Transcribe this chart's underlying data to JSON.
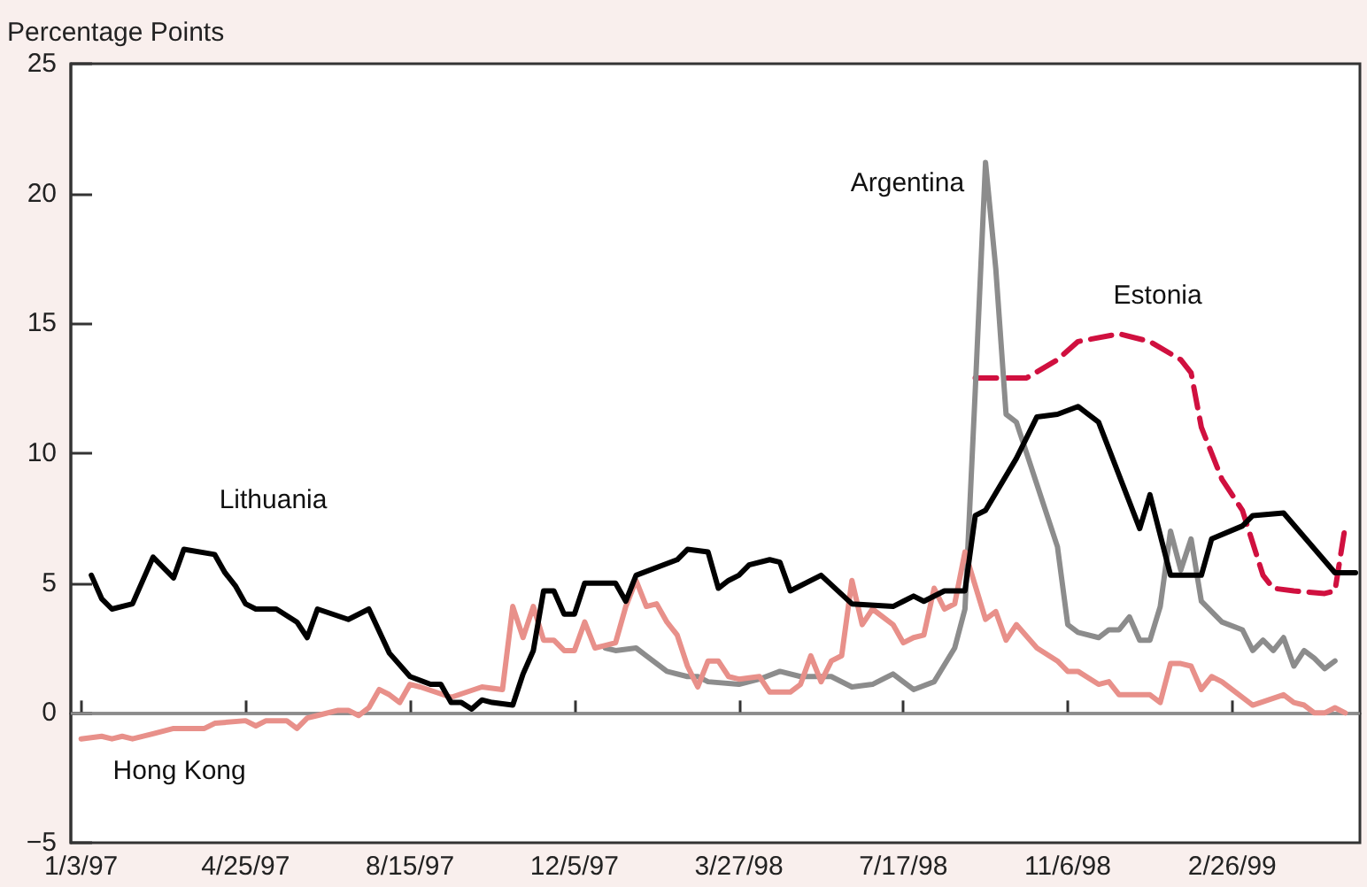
{
  "chart_data": {
    "type": "line",
    "ylabel": "Percentage Points",
    "ylim": [
      -5,
      25
    ],
    "yticks": [
      -5,
      0,
      5,
      10,
      15,
      20,
      25
    ],
    "xlim": [
      "1996-12-27",
      "1999-05-24"
    ],
    "xticks": [
      {
        "value": "1997-01-03",
        "label": "1/3/97"
      },
      {
        "value": "1997-04-25",
        "label": "4/25/97"
      },
      {
        "value": "1997-08-15",
        "label": "8/15/97"
      },
      {
        "value": "1997-12-05",
        "label": "12/5/97"
      },
      {
        "value": "1998-03-27",
        "label": "3/27/98"
      },
      {
        "value": "1998-07-17",
        "label": "7/17/98"
      },
      {
        "value": "1998-11-06",
        "label": "11/6/98"
      },
      {
        "value": "1999-02-26",
        "label": "2/26/99"
      }
    ],
    "grid": false,
    "legend": false,
    "marker": "none",
    "ref_lines": [
      {
        "axis": "y",
        "value": 0,
        "color": "#8c8c8c"
      }
    ],
    "series": [
      {
        "name": "Lithuania",
        "color": "#000000",
        "line_style": "solid",
        "x": [
          "1997-01-10",
          "1997-01-17",
          "1997-01-24",
          "1997-02-07",
          "1997-02-21",
          "1997-03-07",
          "1997-03-14",
          "1997-04-04",
          "1997-04-11",
          "1997-04-18",
          "1997-04-25",
          "1997-05-02",
          "1997-05-16",
          "1997-05-30",
          "1997-06-06",
          "1997-06-13",
          "1997-07-04",
          "1997-07-18",
          "1997-08-01",
          "1997-08-15",
          "1997-08-29",
          "1997-09-05",
          "1997-09-12",
          "1997-09-19",
          "1997-09-26",
          "1997-10-03",
          "1997-10-10",
          "1997-10-24",
          "1997-10-31",
          "1997-11-07",
          "1997-11-14",
          "1997-11-21",
          "1997-11-28",
          "1997-12-05",
          "1997-12-12",
          "1998-01-02",
          "1998-01-09",
          "1998-01-16",
          "1998-02-13",
          "1998-02-20",
          "1998-03-06",
          "1998-03-13",
          "1998-03-20",
          "1998-03-27",
          "1998-04-03",
          "1998-04-17",
          "1998-04-24",
          "1998-05-01",
          "1998-05-22",
          "1998-06-12",
          "1998-07-10",
          "1998-07-17",
          "1998-07-24",
          "1998-07-31",
          "1998-08-14",
          "1998-08-28",
          "1998-09-04",
          "1998-09-11",
          "1998-10-02",
          "1998-10-16",
          "1998-10-30",
          "1998-11-13",
          "1998-11-27",
          "1998-12-25",
          "1999-01-01",
          "1999-01-15",
          "1999-02-05",
          "1999-02-12",
          "1999-03-05",
          "1999-03-12",
          "1999-04-02",
          "1999-05-07",
          "1999-05-21"
        ],
        "values": [
          5.3,
          4.4,
          4.0,
          4.2,
          6.0,
          5.2,
          6.3,
          6.1,
          5.4,
          4.9,
          4.2,
          4.0,
          4.0,
          3.5,
          2.9,
          4.0,
          3.6,
          4.0,
          2.3,
          1.4,
          1.1,
          1.1,
          0.4,
          0.4,
          0.15,
          0.5,
          0.4,
          0.3,
          1.5,
          2.4,
          4.7,
          4.7,
          3.8,
          3.8,
          5.0,
          5.0,
          4.3,
          5.3,
          5.9,
          6.3,
          6.2,
          4.8,
          5.1,
          5.3,
          5.7,
          5.9,
          5.8,
          4.7,
          5.3,
          4.2,
          4.1,
          4.3,
          4.5,
          4.3,
          4.7,
          4.7,
          7.6,
          7.8,
          9.8,
          11.4,
          11.5,
          11.8,
          11.2,
          7.1,
          8.4,
          5.3,
          5.3,
          6.7,
          7.2,
          7.6,
          7.7,
          5.4,
          5.4
        ]
      },
      {
        "name": "Hong Kong",
        "color": "#e8908a",
        "line_style": "solid",
        "x": [
          "1997-01-03",
          "1997-01-17",
          "1997-01-24",
          "1997-01-31",
          "1997-02-07",
          "1997-02-21",
          "1997-03-07",
          "1997-03-28",
          "1997-04-04",
          "1997-04-25",
          "1997-05-02",
          "1997-05-09",
          "1997-05-23",
          "1997-05-30",
          "1997-06-06",
          "1997-06-13",
          "1997-06-27",
          "1997-07-04",
          "1997-07-11",
          "1997-07-18",
          "1997-07-25",
          "1997-08-01",
          "1997-08-08",
          "1997-08-15",
          "1997-08-22",
          "1997-09-12",
          "1997-10-03",
          "1997-10-17",
          "1997-10-24",
          "1997-10-31",
          "1997-11-07",
          "1997-11-14",
          "1997-11-21",
          "1997-11-28",
          "1997-12-05",
          "1997-12-12",
          "1997-12-19",
          "1997-12-26",
          "1998-01-02",
          "1998-01-09",
          "1998-01-16",
          "1998-01-23",
          "1998-01-30",
          "1998-02-06",
          "1998-02-13",
          "1998-02-20",
          "1998-02-27",
          "1998-03-06",
          "1998-03-13",
          "1998-03-20",
          "1998-03-27",
          "1998-04-10",
          "1998-04-17",
          "1998-05-01",
          "1998-05-08",
          "1998-05-15",
          "1998-05-22",
          "1998-05-29",
          "1998-06-05",
          "1998-06-12",
          "1998-06-19",
          "1998-06-26",
          "1998-07-10",
          "1998-07-17",
          "1998-07-24",
          "1998-07-31",
          "1998-08-07",
          "1998-08-14",
          "1998-08-21",
          "1998-08-28",
          "1998-09-04",
          "1998-09-11",
          "1998-09-18",
          "1998-09-25",
          "1998-10-02",
          "1998-10-16",
          "1998-10-30",
          "1998-11-06",
          "1998-11-13",
          "1998-11-27",
          "1998-12-04",
          "1998-12-11",
          "1999-01-01",
          "1999-01-08",
          "1999-01-15",
          "1999-01-22",
          "1999-01-29",
          "1999-02-05",
          "1999-02-12",
          "1999-02-19",
          "1999-03-12",
          "1999-04-02",
          "1999-04-09",
          "1999-04-16",
          "1999-04-23",
          "1999-04-30",
          "1999-05-07",
          "1999-05-14"
        ],
        "values": [
          -1.0,
          -0.9,
          -1.0,
          -0.9,
          -1.0,
          -0.8,
          -0.6,
          -0.6,
          -0.4,
          -0.3,
          -0.5,
          -0.3,
          -0.3,
          -0.6,
          -0.2,
          -0.1,
          0.1,
          0.1,
          -0.1,
          0.2,
          0.9,
          0.7,
          0.4,
          1.1,
          1.0,
          0.6,
          1.0,
          0.9,
          4.1,
          2.9,
          4.1,
          2.8,
          2.8,
          2.4,
          2.4,
          3.5,
          2.5,
          2.6,
          2.7,
          4.1,
          5.1,
          4.1,
          4.2,
          3.5,
          3.0,
          1.8,
          1.0,
          2.0,
          2.0,
          1.4,
          1.3,
          1.4,
          0.8,
          0.8,
          1.1,
          2.2,
          1.2,
          2.0,
          2.2,
          5.1,
          3.4,
          4.0,
          3.4,
          2.7,
          2.9,
          3.0,
          4.8,
          4.0,
          4.2,
          6.2,
          4.9,
          3.6,
          3.9,
          2.8,
          3.4,
          2.5,
          2.0,
          1.6,
          1.6,
          1.1,
          1.2,
          0.7,
          0.7,
          0.4,
          1.9,
          1.9,
          1.8,
          0.9,
          1.4,
          1.2,
          0.3,
          0.7,
          0.4,
          0.3,
          0.0,
          0.0,
          0.2,
          0.0
        ]
      },
      {
        "name": "Argentina",
        "color": "#8c8c8c",
        "line_style": "solid",
        "x": [
          "1997-12-26",
          "1998-01-02",
          "1998-01-16",
          "1998-01-23",
          "1998-02-06",
          "1998-02-20",
          "1998-02-27",
          "1998-03-06",
          "1998-03-27",
          "1998-04-10",
          "1998-04-24",
          "1998-05-08",
          "1998-05-29",
          "1998-06-12",
          "1998-06-26",
          "1998-07-10",
          "1998-07-24",
          "1998-08-07",
          "1998-08-21",
          "1998-08-28",
          "1998-09-04",
          "1998-09-11",
          "1998-09-18",
          "1998-09-25",
          "1998-10-02",
          "1998-10-16",
          "1998-10-30",
          "1998-11-06",
          "1998-11-13",
          "1998-11-27",
          "1998-12-04",
          "1998-12-11",
          "1998-12-18",
          "1998-12-25",
          "1999-01-01",
          "1999-01-08",
          "1999-01-15",
          "1999-01-22",
          "1999-01-29",
          "1999-02-05",
          "1999-02-19",
          "1999-03-05",
          "1999-03-12",
          "1999-03-19",
          "1999-03-26",
          "1999-04-02",
          "1999-04-09",
          "1999-04-16",
          "1999-04-23",
          "1999-04-30",
          "1999-05-07"
        ],
        "values": [
          2.5,
          2.4,
          2.5,
          2.2,
          1.6,
          1.4,
          1.4,
          1.2,
          1.1,
          1.3,
          1.6,
          1.4,
          1.4,
          1.0,
          1.1,
          1.5,
          0.9,
          1.2,
          2.5,
          4.0,
          12.4,
          21.2,
          17.1,
          11.5,
          11.2,
          8.8,
          6.4,
          3.4,
          3.1,
          2.9,
          3.2,
          3.2,
          3.7,
          2.8,
          2.8,
          4.1,
          7.0,
          5.5,
          6.7,
          4.3,
          3.5,
          3.2,
          2.4,
          2.8,
          2.4,
          2.9,
          1.8,
          2.4,
          2.1,
          1.7,
          2.0
        ]
      },
      {
        "name": "Estonia",
        "color": "#d0103f",
        "line_style": "dashed",
        "x": [
          "1998-09-04",
          "1998-10-09",
          "1998-10-30",
          "1998-11-13",
          "1998-12-11",
          "1999-01-01",
          "1999-01-22",
          "1999-01-29",
          "1999-02-05",
          "1999-02-19",
          "1999-03-05",
          "1999-03-19",
          "1999-03-26",
          "1999-04-09",
          "1999-04-30",
          "1999-05-07",
          "1999-05-14"
        ],
        "values": [
          12.9,
          12.9,
          13.6,
          14.3,
          14.6,
          14.3,
          13.6,
          13.1,
          11.0,
          9.0,
          7.8,
          5.3,
          4.8,
          4.7,
          4.6,
          4.7,
          7.2
        ]
      }
    ]
  }
}
